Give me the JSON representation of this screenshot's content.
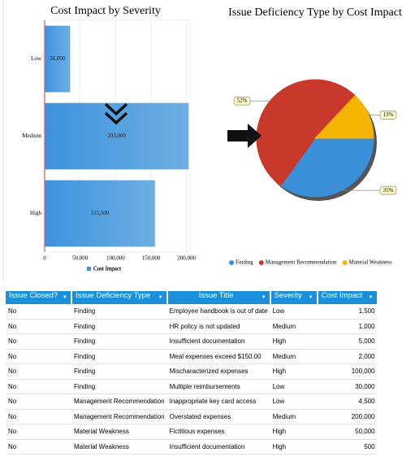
{
  "chart_data": [
    {
      "type": "hbar",
      "title": "Cost Impact by Severity",
      "categories": [
        "Low",
        "Medium",
        "High"
      ],
      "series": [
        {
          "name": "Cost Impact",
          "color": "#3d93dc",
          "values": [
            36000,
            203000,
            155500
          ],
          "value_labels": [
            "36,000",
            "203,000",
            "155,500"
          ]
        }
      ],
      "xlim": [
        0,
        205000
      ],
      "xticks": [
        0,
        {
          "value": 50000,
          "label": "50,000"
        },
        {
          "value": 100000,
          "label": "100,000"
        },
        {
          "value": 150000,
          "label": "150,000"
        },
        {
          "value": 200000,
          "label": "200,000"
        }
      ],
      "grid": true,
      "legend": "bottom"
    },
    {
      "type": "pie",
      "title": "Issue Deficiency Type by Cost Impact",
      "categories": [
        "Finding",
        "Management Recommendation",
        "Material Weakness"
      ],
      "values": [
        35,
        52,
        13
      ],
      "value_labels": [
        "35%",
        "52%",
        "13%"
      ],
      "colors": [
        "#3a8fd9",
        "#c8392b",
        "#f5b400"
      ],
      "legend": "bottom"
    }
  ],
  "table": {
    "headers": [
      "Issue Closed?",
      "Issue Deficiency Type",
      "Issue Title",
      "Severity",
      "Cost Impact"
    ],
    "rows": [
      [
        "No",
        "Finding",
        "Employee handbook is out of date",
        "Low",
        "1,500"
      ],
      [
        "No",
        "Finding",
        "HR policy is not updated",
        "Medium",
        "1,000"
      ],
      [
        "No",
        "Finding",
        "Insufficient documentation",
        "High",
        "5,000"
      ],
      [
        "No",
        "Finding",
        "Meal expenses exceed $150.00",
        "Medium",
        "2,000"
      ],
      [
        "No",
        "Finding",
        "Mischaracterized expenses",
        "High",
        "100,000"
      ],
      [
        "No",
        "Finding",
        "Multiple reimbursements",
        "Low",
        "30,000"
      ],
      [
        "No",
        "Management Recommendation",
        "Inappropriate key card access",
        "Low",
        "4,500"
      ],
      [
        "No",
        "Management Recommendation",
        "Overstated expenses",
        "Medium",
        "200,000"
      ],
      [
        "No",
        "Material Weakness",
        "Fictitious expenses",
        "High",
        "50,000"
      ],
      [
        "No",
        "Material Weakness",
        "Insufficient documentation",
        "High",
        "500"
      ]
    ]
  }
}
